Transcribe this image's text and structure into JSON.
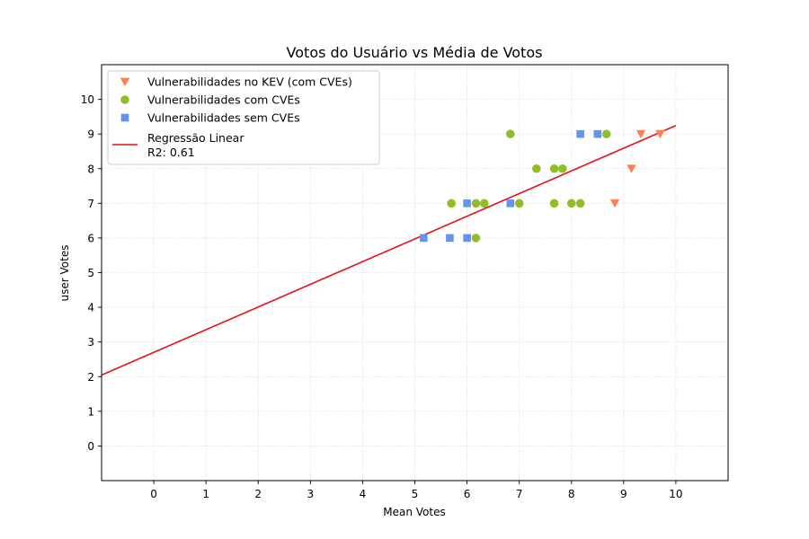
{
  "chart_data": {
    "type": "scatter",
    "title": "Votos do Usuário vs Média de Votos",
    "xlabel": "Mean Votes",
    "ylabel": "user Votes",
    "xlim": [
      -1,
      11
    ],
    "ylim": [
      -1,
      11
    ],
    "xticks": [
      0,
      1,
      2,
      3,
      4,
      5,
      6,
      7,
      8,
      9,
      10
    ],
    "yticks": [
      0,
      1,
      2,
      3,
      4,
      5,
      6,
      7,
      8,
      9,
      10
    ],
    "grid": true,
    "legend_position": "top-left",
    "series": [
      {
        "name": "Vulnerabilidades no KEV (com CVEs)",
        "marker": "triangle-down",
        "color": "#ff7f50",
        "points": [
          [
            8.83,
            7
          ],
          [
            9.15,
            8
          ],
          [
            9.33,
            9
          ],
          [
            9.7,
            9
          ]
        ]
      },
      {
        "name": "Vulnerabilidades com CVEs",
        "marker": "circle",
        "color": "#8fbf26",
        "points": [
          [
            5.7,
            7
          ],
          [
            6.17,
            7
          ],
          [
            6.33,
            7
          ],
          [
            6.17,
            6
          ],
          [
            6.83,
            9
          ],
          [
            7.0,
            7
          ],
          [
            7.33,
            8
          ],
          [
            7.67,
            8
          ],
          [
            7.83,
            8
          ],
          [
            7.67,
            7
          ],
          [
            8.0,
            7
          ],
          [
            8.17,
            7
          ],
          [
            8.67,
            9
          ]
        ]
      },
      {
        "name": "Vulnerabilidades sem CVEs",
        "marker": "square",
        "color": "#6495ed",
        "points": [
          [
            5.17,
            6
          ],
          [
            5.67,
            6
          ],
          [
            6.0,
            6
          ],
          [
            6.0,
            7
          ],
          [
            6.83,
            7
          ],
          [
            8.17,
            9
          ],
          [
            8.5,
            9
          ]
        ]
      }
    ],
    "regression": {
      "name": "Regressão Linear",
      "r2_label": "R2: 0.61",
      "color": "#e8101a",
      "x_range": [
        -1,
        10
      ],
      "slope": 0.6545,
      "intercept": 2.7
    }
  }
}
